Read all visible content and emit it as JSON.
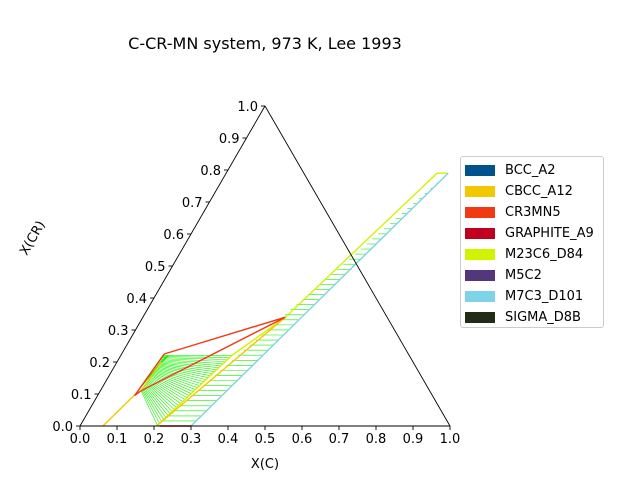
{
  "chart_data": {
    "type": "ternary",
    "title": "C-CR-MN system, 973 K, Lee 1993",
    "xlabel": "X(C)",
    "ylabel": "X(CR)",
    "xlim": [
      0,
      1
    ],
    "ylim": [
      0,
      1
    ],
    "x_ticks": [
      "0.0",
      "0.1",
      "0.2",
      "0.3",
      "0.4",
      "0.5",
      "0.6",
      "0.7",
      "0.8",
      "0.9",
      "1.0"
    ],
    "y_ticks": [
      "0.0",
      "0.1",
      "0.2",
      "0.3",
      "0.4",
      "0.5",
      "0.6",
      "0.7",
      "0.8",
      "0.9",
      "1.0"
    ],
    "legend_position": "right",
    "legend": [
      {
        "name": "BCC_A2",
        "color": "#00538a"
      },
      {
        "name": "CBCC_A12",
        "color": "#f4c800"
      },
      {
        "name": "CR3MN5",
        "color": "#f13a13"
      },
      {
        "name": "GRAPHITE_A9",
        "color": "#c10020"
      },
      {
        "name": "M23C6_D84",
        "color": "#d2f300"
      },
      {
        "name": "M5C2",
        "color": "#53377a"
      },
      {
        "name": "M7C3_D101",
        "color": "#7ed3e8"
      },
      {
        "name": "SIGMA_D8B",
        "color": "#232c16"
      }
    ],
    "boundaries": [
      {
        "phase": "M23C6_D84",
        "color": "#d2f300",
        "points": [
          [
            0.207,
            0.0
          ],
          [
            0.3,
            0.22
          ],
          [
            0.385,
            0.34
          ],
          [
            0.57,
            0.79
          ],
          [
            0.6,
            0.79
          ]
        ]
      },
      {
        "phase": "M7C3_D101",
        "color": "#7ed3e8",
        "points": [
          [
            0.3,
            0.0
          ],
          [
            0.6,
            0.79
          ]
        ]
      },
      {
        "phase": "CBCC_A12",
        "color": "#f4c800",
        "points": [
          [
            0.062,
            0.0
          ],
          [
            0.1,
            0.1
          ],
          [
            0.11,
            0.11
          ],
          [
            0.12,
            0.2
          ]
        ]
      },
      {
        "phase": "CBCC_A12",
        "color": "#f4c800",
        "points": [
          [
            0.207,
            0.0
          ],
          [
            0.385,
            0.34
          ]
        ]
      },
      {
        "phase": "CR3MN5",
        "color": "#f13a13",
        "points": [
          [
            0.115,
            0.225
          ],
          [
            0.385,
            0.34
          ],
          [
            0.11,
            0.11
          ],
          [
            0.1,
            0.095
          ],
          [
            0.115,
            0.225
          ]
        ]
      },
      {
        "phase": "GRAPHITE_A9",
        "color": "#c10020",
        "points": [
          [
            0.215,
            0.0
          ],
          [
            0.3,
            0.0
          ]
        ]
      }
    ],
    "two_phase_regions": [
      {
        "from": [
          [
            0.1,
            0.1
          ],
          [
            0.12,
            0.22
          ]
        ],
        "to": [
          [
            0.12,
            0.2
          ],
          [
            0.13,
            0.22
          ]
        ],
        "lines": 18
      },
      {
        "from": [
          [
            0.11,
            0.11
          ],
          [
            0.115,
            0.22
          ]
        ],
        "to": [
          [
            0.21,
            0.0
          ],
          [
            0.3,
            0.22
          ]
        ],
        "lines": 35
      },
      {
        "from": [
          [
            0.3,
            0.0
          ],
          [
            0.6,
            0.79
          ]
        ],
        "to": [
          [
            0.207,
            0.0
          ],
          [
            0.6,
            0.79
          ]
        ],
        "lines": 50
      }
    ],
    "grid": false
  }
}
